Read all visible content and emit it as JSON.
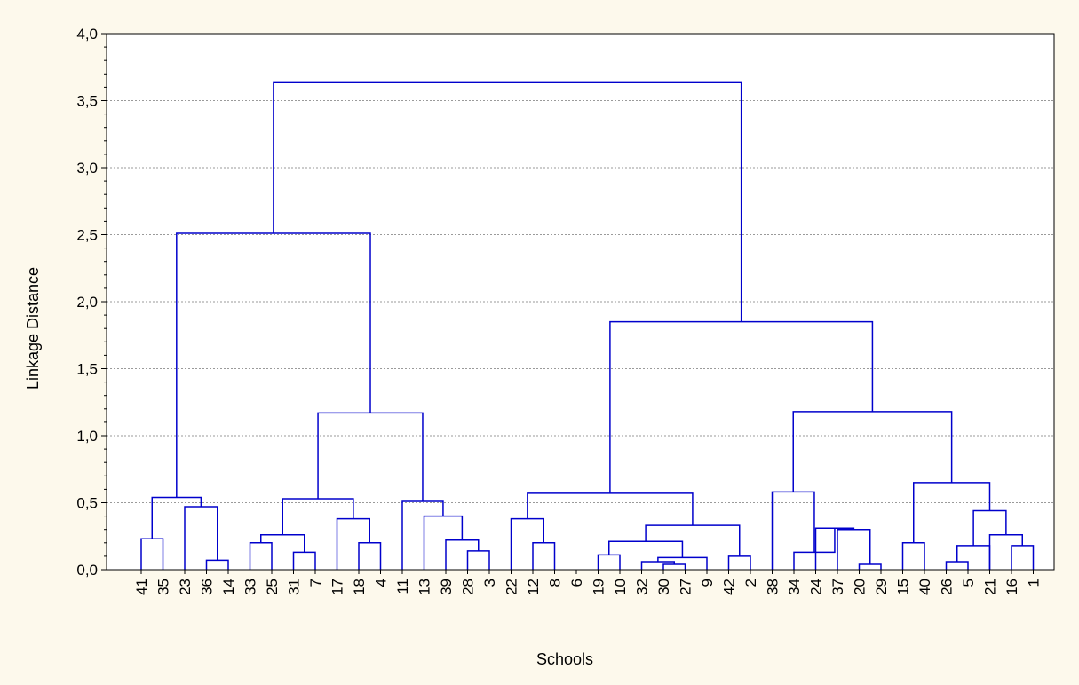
{
  "chart_data": {
    "type": "dendrogram",
    "xlabel": "Schools",
    "ylabel": "Linkage Distance",
    "ylim": [
      0,
      4.0
    ],
    "y_ticks": [
      "0,0",
      "0,5",
      "1,0",
      "1,5",
      "2,0",
      "2,5",
      "3,0",
      "3,5",
      "4,0"
    ],
    "grid": true,
    "leaves": [
      "41",
      "35",
      "23",
      "36",
      "14",
      "33",
      "25",
      "31",
      "7",
      "17",
      "18",
      "4",
      "11",
      "13",
      "39",
      "28",
      "3",
      "22",
      "12",
      "8",
      "6",
      "19",
      "10",
      "32",
      "30",
      "27",
      "9",
      "42",
      "2",
      "38",
      "34",
      "24",
      "37",
      "20",
      "29",
      "15",
      "40",
      "26",
      "5",
      "21",
      "16",
      "1"
    ],
    "merges": [
      {
        "left": "leaf:0",
        "right": "leaf:1",
        "height": 0.23
      },
      {
        "left": "leaf:3",
        "right": "leaf:4",
        "height": 0.07
      },
      {
        "left": "leaf:2",
        "right": "node:1",
        "height": 0.47
      },
      {
        "left": "node:0",
        "right": "node:2",
        "height": 0.54
      },
      {
        "left": "leaf:5",
        "right": "leaf:6",
        "height": 0.2
      },
      {
        "left": "leaf:7",
        "right": "leaf:8",
        "height": 0.13
      },
      {
        "left": "node:4",
        "right": "node:5",
        "height": 0.26
      },
      {
        "left": "leaf:10",
        "right": "leaf:11",
        "height": 0.2
      },
      {
        "left": "leaf:9",
        "right": "node:7",
        "height": 0.38
      },
      {
        "left": "node:6",
        "right": "node:8",
        "height": 0.53
      },
      {
        "left": "leaf:15",
        "right": "leaf:16",
        "height": 0.14
      },
      {
        "left": "leaf:14",
        "right": "node:10",
        "height": 0.22
      },
      {
        "left": "leaf:13",
        "right": "node:11",
        "height": 0.4
      },
      {
        "left": "leaf:12",
        "right": "node:12",
        "height": 0.51
      },
      {
        "left": "node:9",
        "right": "node:13",
        "height": 1.17
      },
      {
        "left": "node:3",
        "right": "node:14",
        "height": 2.51
      },
      {
        "left": "leaf:18",
        "right": "leaf:19",
        "height": 0.2
      },
      {
        "left": "leaf:17",
        "right": "node:16",
        "height": 0.38
      },
      {
        "left": "leaf:21",
        "right": "leaf:22",
        "height": 0.11
      },
      {
        "left": "leaf:24",
        "right": "leaf:25",
        "height": 0.04
      },
      {
        "left": "leaf:23",
        "right": "node:19",
        "height": 0.06
      },
      {
        "left": "node:20",
        "right": "leaf:26",
        "height": 0.09
      },
      {
        "left": "node:18",
        "right": "node:21",
        "height": 0.21
      },
      {
        "left": "leaf:27",
        "right": "leaf:28",
        "height": 0.1
      },
      {
        "left": "node:22",
        "right": "node:23",
        "height": 0.33
      },
      {
        "left": "node:17",
        "right": "node:24",
        "height": 0.57
      },
      {
        "left": "leaf:33",
        "right": "leaf:34",
        "height": 0.04
      },
      {
        "left": "leaf:32",
        "right": "node:26",
        "height": 0.3
      },
      {
        "left": "leaf:31",
        "right": "node:27",
        "height": 0.31
      },
      {
        "left": "leaf:30",
        "right": "node:28",
        "height": 0.13
      },
      {
        "left": "leaf:29",
        "right": "node:29",
        "height": 0.58
      },
      {
        "left": "leaf:35",
        "right": "leaf:36",
        "height": 0.2
      },
      {
        "left": "leaf:37",
        "right": "leaf:38",
        "height": 0.06
      },
      {
        "left": "node:32",
        "right": "leaf:39",
        "height": 0.18
      },
      {
        "left": "leaf:40",
        "right": "leaf:41",
        "height": 0.18
      },
      {
        "left": "leaf:39",
        "right": "node:34",
        "height": 0.26
      },
      {
        "left": "node:33",
        "right": "node:35",
        "height": 0.44
      },
      {
        "left": "node:31",
        "right": "node:36",
        "height": 0.65
      },
      {
        "left": "node:30",
        "right": "node:37",
        "height": 1.18
      },
      {
        "left": "node:25",
        "right": "node:38",
        "height": 1.85
      },
      {
        "left": "node:15",
        "right": "node:39",
        "height": 3.64
      }
    ],
    "colors": {
      "line": "#0000cc",
      "grid": "#9a9a9a",
      "plot_background": "#ffffff",
      "page_background": "#fdf9ec"
    }
  }
}
